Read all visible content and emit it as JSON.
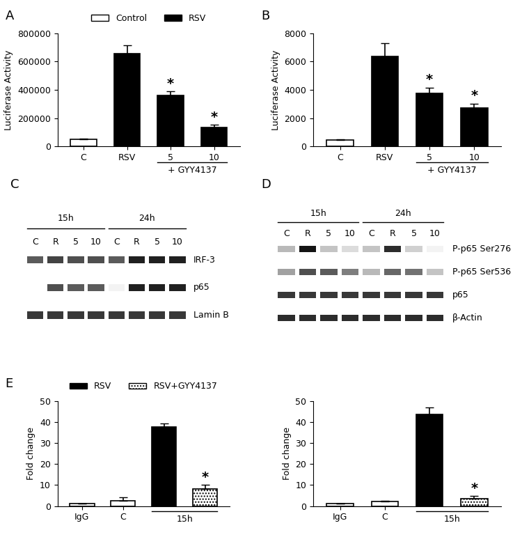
{
  "chart_data": [
    {
      "type": "bar",
      "panel": "A",
      "ylabel": "Luciferase Activity",
      "categories": [
        "C",
        "RSV",
        "5",
        "10"
      ],
      "series": [
        {
          "name": "Control",
          "color": "#ffffff",
          "values": [
            50000,
            null,
            null,
            null
          ],
          "errors": [
            5000,
            null,
            null,
            null
          ]
        },
        {
          "name": "RSV",
          "color": "#000000",
          "values": [
            null,
            655000,
            363000,
            137000
          ],
          "errors": [
            null,
            62000,
            25000,
            15000
          ]
        }
      ],
      "ylim": [
        0,
        800000
      ],
      "yticks": [
        0,
        200000,
        400000,
        600000,
        800000
      ],
      "legend": "lower center",
      "groups": [
        {
          "text": "+ GYY4137",
          "span": [
            2,
            3
          ]
        }
      ],
      "annotations": [
        {
          "text": "*",
          "bar": 2
        },
        {
          "text": "*",
          "bar": 3
        }
      ]
    },
    {
      "type": "bar",
      "panel": "B",
      "ylabel": "Luciferase Activity",
      "categories": [
        "C",
        "RSV",
        "5",
        "10"
      ],
      "series": [
        {
          "color": "#ffffff",
          "values": [
            450,
            null,
            null,
            null
          ],
          "errors": [
            60,
            null,
            null,
            null
          ]
        },
        {
          "color": "#000000",
          "values": [
            null,
            6350,
            3780,
            2700
          ],
          "errors": [
            null,
            950,
            380,
            330
          ]
        }
      ],
      "ylim": [
        0,
        8000
      ],
      "yticks": [
        0,
        2000,
        4000,
        6000,
        8000
      ],
      "groups": [
        {
          "text": "+ GYY4137",
          "span": [
            2,
            3
          ]
        }
      ],
      "annotations": [
        {
          "text": "*",
          "bar": 2
        },
        {
          "text": "*",
          "bar": 3
        }
      ]
    },
    {
      "type": "bar",
      "panel": "E",
      "ylabel": "Fold change",
      "categories": [
        "IgG",
        "C",
        null,
        null
      ],
      "series": [
        {
          "color": "#ffffff",
          "values": [
            1,
            2.5,
            null,
            null
          ],
          "errors": [
            0.1,
            1.8,
            null,
            null
          ]
        },
        {
          "name": "RSV",
          "color": "#000000",
          "values": [
            null,
            null,
            37.5,
            null
          ],
          "errors": [
            null,
            null,
            1.8,
            null
          ]
        },
        {
          "name": "RSV+GYY4137",
          "color": "#ffffff",
          "values": [
            null,
            null,
            null,
            8
          ],
          "errors": [
            null,
            null,
            null,
            2.0
          ]
        }
      ],
      "ylim": [
        0,
        50
      ],
      "yticks": [
        0,
        10,
        20,
        30,
        40,
        50
      ],
      "legend": "lower center",
      "groups": [
        {
          "text": "15h",
          "span": [
            2,
            3
          ]
        }
      ],
      "annotations": [
        {
          "text": "*",
          "bar": 3
        }
      ]
    },
    {
      "type": "bar",
      "ylabel": "Fold change",
      "categories": [
        "IgG",
        "C",
        null,
        null
      ],
      "series": [
        {
          "color": "#ffffff",
          "values": [
            1,
            2,
            null,
            null
          ],
          "errors": [
            0.1,
            0.4,
            null,
            null
          ]
        },
        {
          "color": "#000000",
          "values": [
            null,
            null,
            43.5,
            null
          ],
          "errors": [
            null,
            null,
            3.5,
            null
          ]
        },
        {
          "color": "#ffffff",
          "values": [
            null,
            null,
            null,
            3.5
          ],
          "errors": [
            null,
            null,
            null,
            1.3
          ]
        }
      ],
      "ylim": [
        0,
        50
      ],
      "yticks": [
        0,
        10,
        20,
        30,
        40,
        50
      ],
      "groups": [
        {
          "text": "15h",
          "span": [
            2,
            3
          ]
        }
      ],
      "annotations": [
        {
          "text": "*",
          "bar": 3
        }
      ]
    }
  ],
  "blots": [
    {
      "panel": "C",
      "lanes": [
        "C",
        "R",
        "5",
        "10",
        "C",
        "R",
        "5",
        "10"
      ],
      "groups": [
        {
          "text": "15h",
          "span": [
            0,
            3
          ]
        },
        {
          "text": "24h",
          "span": [
            4,
            7
          ]
        }
      ],
      "rows": [
        {
          "label": "IRF-3",
          "intensity": [
            0.7,
            0.8,
            0.75,
            0.75,
            0.7,
            0.95,
            0.95,
            0.95
          ]
        },
        {
          "label": "p65",
          "intensity": [
            0,
            0.75,
            0.7,
            0.7,
            0.05,
            0.95,
            0.95,
            0.95
          ]
        },
        {
          "label": "Lamin B",
          "intensity": [
            0.85,
            0.85,
            0.85,
            0.85,
            0.85,
            0.85,
            0.85,
            0.85
          ]
        }
      ]
    },
    {
      "panel": "D",
      "lanes": [
        "C",
        "R",
        "5",
        "10",
        "C",
        "R",
        "5",
        "10"
      ],
      "groups": [
        {
          "text": "15h",
          "span": [
            0,
            3
          ]
        },
        {
          "text": "24h",
          "span": [
            4,
            7
          ]
        }
      ],
      "rows": [
        {
          "label": "P-p65 Ser276",
          "intensity": [
            0.3,
            1.0,
            0.25,
            0.15,
            0.25,
            0.9,
            0.2,
            0.05
          ]
        },
        {
          "label": "P-p65 Ser536",
          "intensity": [
            0.4,
            0.75,
            0.7,
            0.55,
            0.3,
            0.65,
            0.6,
            0.25
          ]
        },
        {
          "label": "p65",
          "intensity": [
            0.85,
            0.85,
            0.85,
            0.85,
            0.85,
            0.85,
            0.85,
            0.85
          ]
        },
        {
          "label": "β-Actin",
          "intensity": [
            0.9,
            0.9,
            0.9,
            0.9,
            0.9,
            0.9,
            0.9,
            0.9
          ]
        }
      ]
    }
  ]
}
